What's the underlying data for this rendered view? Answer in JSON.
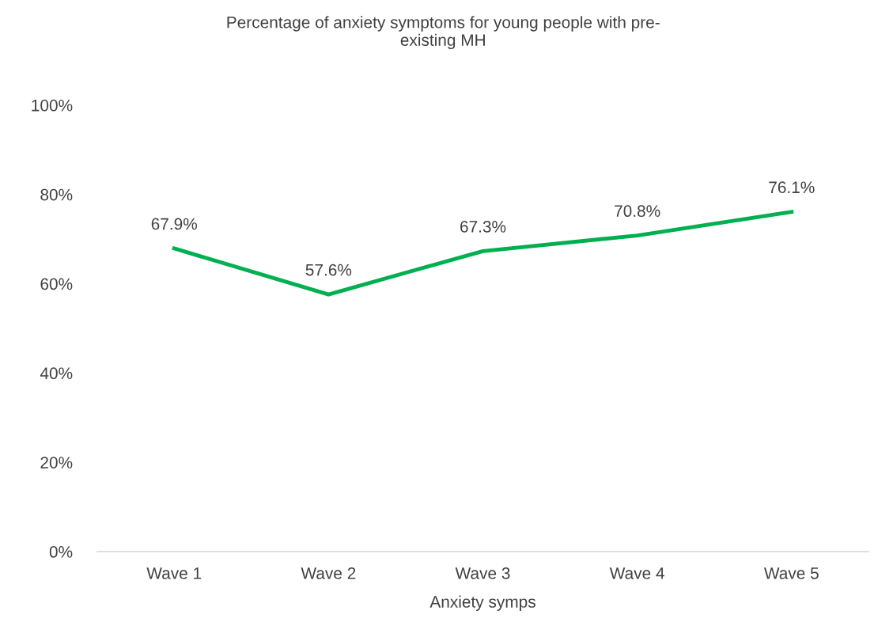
{
  "chart_data": {
    "type": "line",
    "title": "Percentage of anxiety symptoms for young people with pre-\nexisting MH",
    "xlabel": "Anxiety symps",
    "categories": [
      "Wave 1",
      "Wave 2",
      "Wave 3",
      "Wave 4",
      "Wave 5"
    ],
    "series": [
      {
        "color": "#00b050",
        "values": [
          67.9,
          57.6,
          67.3,
          70.8,
          76.1
        ],
        "value_labels": [
          "67.9%",
          "57.6%",
          "67.3%",
          "70.8%",
          "76.1%"
        ]
      }
    ],
    "ylim": [
      0,
      100
    ],
    "yticks": [
      {
        "value": 0,
        "label": "0%"
      },
      {
        "value": 20,
        "label": "20%"
      },
      {
        "value": 40,
        "label": "40%"
      },
      {
        "value": 60,
        "label": "60%"
      },
      {
        "value": 80,
        "label": "80%"
      },
      {
        "value": 100,
        "label": "100%"
      }
    ],
    "grid": false,
    "legend": false,
    "marker": "none",
    "line_style": "solid"
  }
}
